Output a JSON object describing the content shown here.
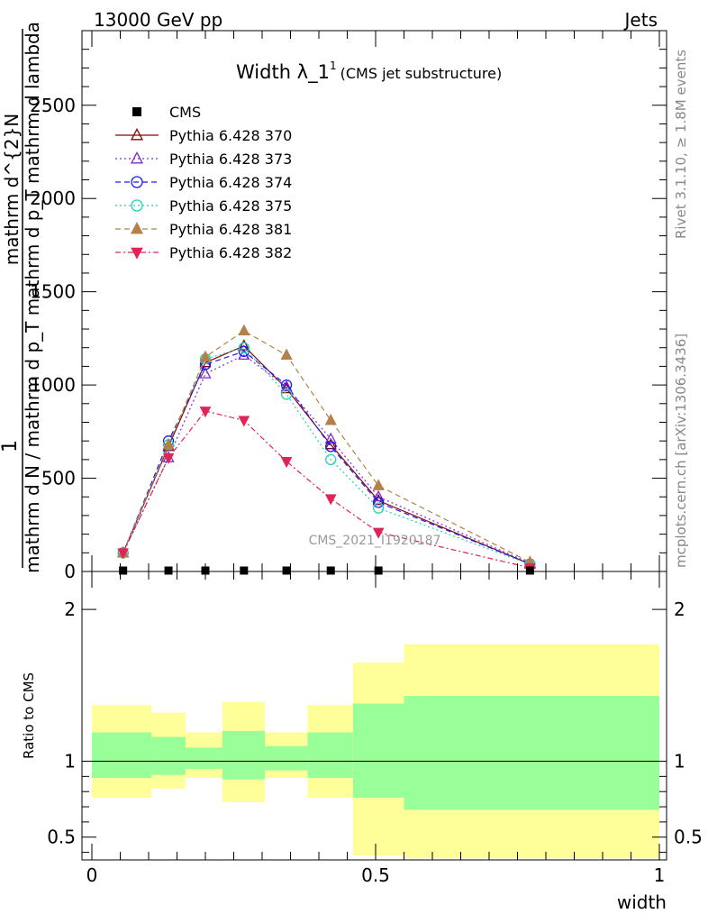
{
  "header": {
    "left": "13000 GeV pp",
    "right": "Jets",
    "side_top": "Rivet 3.1.10, ≥ 1.8M events",
    "side_bottom": "mcplots.cern.ch [arXiv:1306.3436]"
  },
  "chart_data": [
    {
      "type": "line",
      "title": "Width λ_1",
      "title_sup": "1",
      "subtitle": "(CMS jet substructure)",
      "ylabel_numerator": "1",
      "ylabel_denominator": "mathrm d N / mathrm d p_T mathrm d p_T mathrm d lambda",
      "ylabel_overlay": "mathrm d^{2}N",
      "xlim": [
        0,
        1
      ],
      "ylim": [
        0,
        2900
      ],
      "yticks": [
        0,
        500,
        1000,
        1500,
        2000,
        2500
      ],
      "ytick_labels": [
        "0",
        "500",
        "1000",
        "1500",
        "2000",
        "2500"
      ],
      "watermark": "CMS_2021_I1920187",
      "legend_position": "top-left",
      "x": [
        0.055,
        0.135,
        0.2,
        0.268,
        0.343,
        0.421,
        0.505,
        0.772
      ],
      "series": [
        {
          "name": "CMS",
          "values": [
            0,
            0,
            0,
            0,
            0,
            0,
            0,
            0
          ],
          "color": "#000000",
          "marker": "square-filled",
          "line": "none"
        },
        {
          "name": "Pythia 6.428 370",
          "values": [
            100,
            670,
            1120,
            1210,
            980,
            680,
            380,
            40
          ],
          "color": "#8b0000",
          "marker": "triangle-open",
          "line": "solid"
        },
        {
          "name": "Pythia 6.428 373",
          "values": [
            100,
            610,
            1060,
            1160,
            990,
            710,
            400,
            45
          ],
          "color": "#7b2cc8",
          "marker": "triangle-open",
          "line": "dotted"
        },
        {
          "name": "Pythia 6.428 374",
          "values": [
            100,
            700,
            1110,
            1180,
            1000,
            670,
            370,
            40
          ],
          "color": "#1a1aff",
          "marker": "circle-open",
          "line": "dashed"
        },
        {
          "name": "Pythia 6.428 375",
          "values": [
            100,
            680,
            1140,
            1200,
            950,
            600,
            340,
            38
          ],
          "color": "#22d3b4",
          "marker": "circle-open",
          "line": "dotted"
        },
        {
          "name": "Pythia 6.428 381",
          "values": [
            100,
            680,
            1150,
            1290,
            1160,
            810,
            460,
            50
          ],
          "color": "#b5814a",
          "marker": "triangle-filled",
          "line": "dashed"
        },
        {
          "name": "Pythia 6.428 382",
          "values": [
            100,
            610,
            860,
            810,
            590,
            390,
            210,
            20
          ],
          "color": "#e0245a",
          "marker": "triangle-down-filled",
          "line": "dashdot"
        }
      ]
    },
    {
      "type": "area",
      "ylabel": "Ratio to CMS",
      "xlabel": "width",
      "xlim": [
        0,
        1
      ],
      "ylim": [
        0.35,
        2.25
      ],
      "yticks": [
        0.5,
        1,
        2
      ],
      "ytick_labels": [
        "0.5",
        "1",
        "2"
      ],
      "xticks": [
        0,
        0.5,
        1
      ],
      "xtick_labels": [
        "0",
        "0.5",
        "1"
      ],
      "reference": 1,
      "bins": [
        {
          "lo": 0.0,
          "hi": 0.105,
          "green": [
            0.89,
            1.19
          ],
          "yellow": [
            0.76,
            1.37
          ]
        },
        {
          "lo": 0.105,
          "hi": 0.165,
          "green": [
            0.91,
            1.16
          ],
          "yellow": [
            0.82,
            1.32
          ]
        },
        {
          "lo": 0.165,
          "hi": 0.23,
          "green": [
            0.95,
            1.09
          ],
          "yellow": [
            0.89,
            1.19
          ]
        },
        {
          "lo": 0.23,
          "hi": 0.305,
          "green": [
            0.88,
            1.2
          ],
          "yellow": [
            0.73,
            1.39
          ]
        },
        {
          "lo": 0.305,
          "hi": 0.38,
          "green": [
            0.94,
            1.1
          ],
          "yellow": [
            0.89,
            1.19
          ]
        },
        {
          "lo": 0.38,
          "hi": 0.46,
          "green": [
            0.89,
            1.19
          ],
          "yellow": [
            0.76,
            1.37
          ]
        },
        {
          "lo": 0.46,
          "hi": 0.55,
          "green": [
            0.76,
            1.38
          ],
          "yellow": [
            0.38,
            1.65
          ]
        },
        {
          "lo": 0.55,
          "hi": 1.0,
          "green": [
            0.68,
            1.43
          ],
          "yellow": [
            0.36,
            1.77
          ]
        }
      ],
      "green_color": "#99ff99",
      "yellow_color": "#ffff99"
    }
  ]
}
